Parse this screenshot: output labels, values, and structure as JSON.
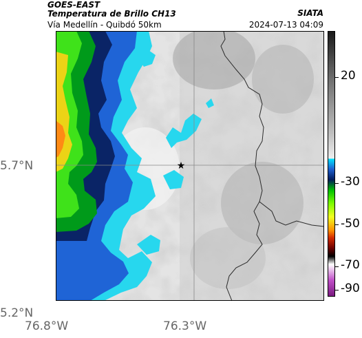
{
  "header": {
    "satellite": "GOES-EAST",
    "product": "Temperatura de Brillo CH13",
    "region": "Vía Medellín - Quibdó 50km",
    "agency": "SIATA",
    "datetime": "2024-07-13 04:09"
  },
  "axes": {
    "lat_labels": [
      "5.7°N",
      "5.2°N"
    ],
    "lon_labels": [
      "76.8°W",
      "76.3°W"
    ]
  },
  "colorbar": {
    "labels": [
      "20",
      "-30",
      "-50",
      "-70",
      "-90"
    ],
    "colors": [
      "#1a1a1a",
      "#6f6f6f",
      "#bdbdbd",
      "#eeeeee",
      "#00e6ff",
      "#1e5fd0",
      "#001b5c",
      "#00c000",
      "#7cfc00",
      "#f0ff20",
      "#ff9500",
      "#d42a00",
      "#6b0000",
      "#000000",
      "#ffffff",
      "#c14fc8",
      "#7a1a80"
    ]
  },
  "map": {
    "station_marker": "star-icon"
  }
}
